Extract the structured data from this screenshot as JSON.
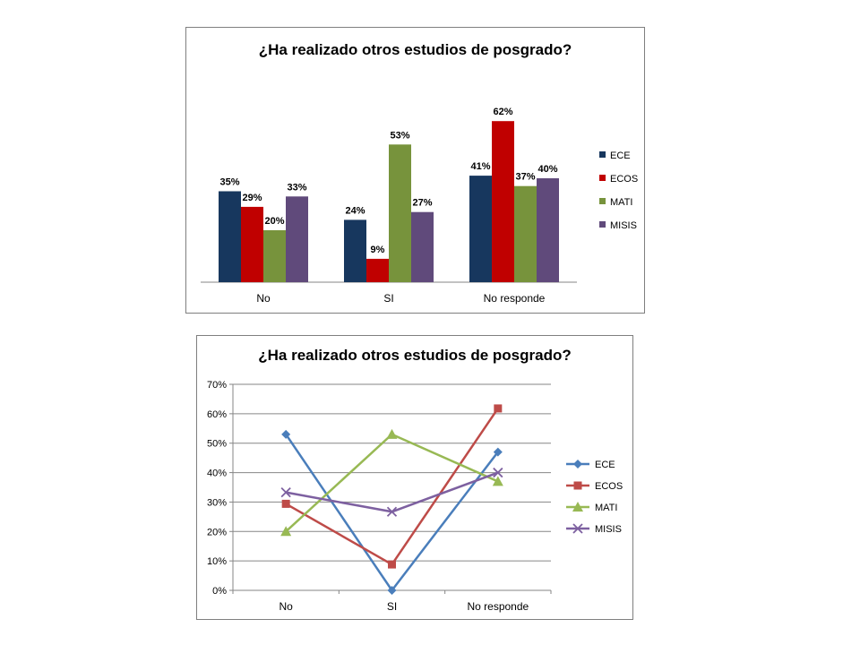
{
  "chart_data": [
    {
      "type": "bar",
      "title": "¿Ha realizado otros estudios de posgrado?",
      "categories": [
        "No",
        "SI",
        "No responde"
      ],
      "series": [
        {
          "name": "ECE",
          "values": [
            35,
            24,
            41
          ],
          "labels": [
            "35%",
            "24%",
            "41%"
          ],
          "color": "#17375e"
        },
        {
          "name": "ECOS",
          "values": [
            29,
            9,
            62
          ],
          "labels": [
            "29%",
            "9%",
            "62%"
          ],
          "color": "#c00000"
        },
        {
          "name": "MATI",
          "values": [
            20,
            53,
            37
          ],
          "labels": [
            "20%",
            "53%",
            "37%"
          ],
          "color": "#77933c"
        },
        {
          "name": "MISIS",
          "values": [
            33,
            27,
            40
          ],
          "labels": [
            "33%",
            "27%",
            "40%"
          ],
          "color": "#604a7b"
        }
      ],
      "ylim": [
        0,
        70
      ],
      "legend": "right",
      "grid": false
    },
    {
      "type": "line",
      "title": "¿Ha realizado otros estudios de posgrado?",
      "categories": [
        "No",
        "SI",
        "No responde"
      ],
      "series": [
        {
          "name": "ECE",
          "values": [
            53,
            0,
            47
          ],
          "color": "#4a7ebb",
          "marker": "diamond"
        },
        {
          "name": "ECOS",
          "values": [
            29.4,
            8.8,
            61.8
          ],
          "color": "#be4b48",
          "marker": "square"
        },
        {
          "name": "MATI",
          "values": [
            20,
            53,
            37
          ],
          "color": "#98b954",
          "marker": "triangle"
        },
        {
          "name": "MISIS",
          "values": [
            33.3,
            26.7,
            40
          ],
          "color": "#7d60a0",
          "marker": "x"
        }
      ],
      "yticks": [
        "0%",
        "10%",
        "20%",
        "30%",
        "40%",
        "50%",
        "60%",
        "70%"
      ],
      "ylim": [
        0,
        70
      ],
      "legend": "right",
      "grid": true
    }
  ]
}
